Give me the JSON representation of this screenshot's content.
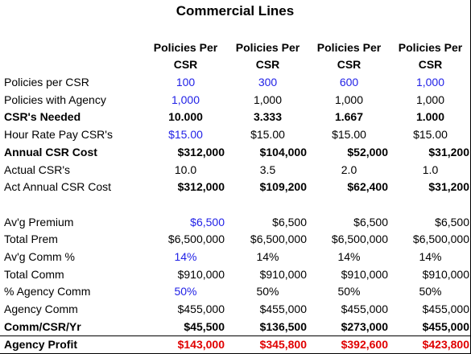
{
  "title": "Commercial Lines",
  "table": {
    "header": [
      "Policies Per CSR",
      "Policies Per CSR",
      "Policies Per CSR",
      "Policies Per CSR"
    ],
    "sections": [
      {
        "rows": [
          [
            "Policies per CSR",
            "100",
            "300",
            "600",
            "1,000"
          ],
          [
            "Policies with Agency",
            "1,000",
            "1,000",
            "1,000",
            "1,000"
          ],
          [
            "CSR's Needed",
            "10.000",
            "3.333",
            "1.667",
            "1.000"
          ],
          [
            "Hour Rate Pay CSR's",
            "$15.00",
            "$15.00",
            "$15.00",
            "$15.00"
          ],
          [
            "Annual CSR Cost",
            "$312,000",
            "$104,000",
            "$52,000",
            "$31,200"
          ],
          [
            "Actual CSR's",
            "10.0",
            "3.5",
            "2.0",
            "1.0"
          ],
          [
            "Act Annual CSR Cost",
            "$312,000",
            "$109,200",
            "$62,400",
            "$31,200"
          ]
        ]
      },
      {
        "rows": [
          [
            "Av'g Premium",
            "$6,500",
            "$6,500",
            "$6,500",
            "$6,500"
          ],
          [
            "Total Prem",
            "$6,500,000",
            "$6,500,000",
            "$6,500,000",
            "$6,500,000"
          ],
          [
            "Av'g Comm %",
            "14%",
            "14%",
            "14%",
            "14%"
          ],
          [
            "Total Comm",
            "$910,000",
            "$910,000",
            "$910,000",
            "$910,000"
          ],
          [
            "% Agency Comm",
            "50%",
            "50%",
            "50%",
            "50%"
          ],
          [
            "Agency Comm",
            "$455,000",
            "$455,000",
            "$455,000",
            "$455,000"
          ],
          [
            "Comm/CSR/Yr",
            "$45,500",
            "$136,500",
            "$273,000",
            "$455,000"
          ],
          [
            "Agency Profit",
            "$143,000",
            "$345,800",
            "$392,600",
            "$423,800"
          ]
        ]
      }
    ]
  }
}
